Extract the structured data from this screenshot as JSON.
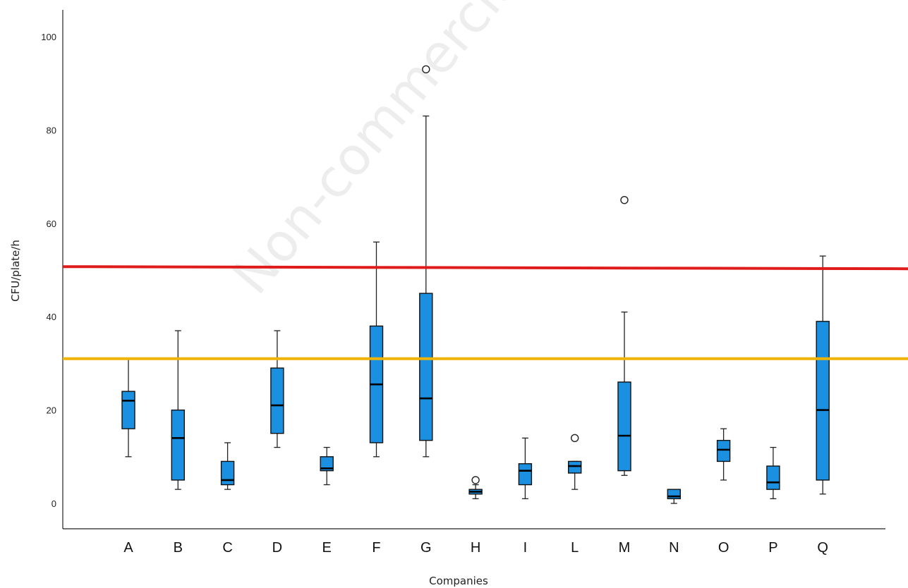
{
  "chart_data": {
    "type": "boxplot",
    "xlabel": "Companies",
    "ylabel": "CFU/plate/h",
    "ylim": [
      -5,
      105
    ],
    "yticks": [
      0,
      20,
      40,
      60,
      80,
      100
    ],
    "watermark": "Non-commercial",
    "categories": [
      "A",
      "B",
      "C",
      "D",
      "E",
      "F",
      "G",
      "H",
      "I",
      "L",
      "M",
      "N",
      "O",
      "P",
      "Q"
    ],
    "boxes": [
      {
        "category": "A",
        "whisker_low": 10,
        "q1": 16,
        "median": 22,
        "q3": 24,
        "whisker_high": 31,
        "outliers": []
      },
      {
        "category": "B",
        "whisker_low": 3,
        "q1": 5,
        "median": 14,
        "q3": 20,
        "whisker_high": 37,
        "outliers": []
      },
      {
        "category": "C",
        "whisker_low": 3,
        "q1": 4,
        "median": 5,
        "q3": 9,
        "whisker_high": 13,
        "outliers": []
      },
      {
        "category": "D",
        "whisker_low": 12,
        "q1": 15,
        "median": 21,
        "q3": 29,
        "whisker_high": 37,
        "outliers": []
      },
      {
        "category": "E",
        "whisker_low": 4,
        "q1": 7,
        "median": 7.5,
        "q3": 10,
        "whisker_high": 12,
        "outliers": []
      },
      {
        "category": "F",
        "whisker_low": 10,
        "q1": 13,
        "median": 25.5,
        "q3": 38,
        "whisker_high": 56,
        "outliers": []
      },
      {
        "category": "G",
        "whisker_low": 10,
        "q1": 13.5,
        "median": 22.5,
        "q3": 45,
        "whisker_high": 83,
        "outliers": [
          93
        ]
      },
      {
        "category": "H",
        "whisker_low": 1,
        "q1": 2,
        "median": 2.5,
        "q3": 3,
        "whisker_high": 4,
        "outliers": [
          5
        ]
      },
      {
        "category": "I",
        "whisker_low": 1,
        "q1": 4,
        "median": 7,
        "q3": 8.5,
        "whisker_high": 14,
        "outliers": []
      },
      {
        "category": "L",
        "whisker_low": 3,
        "q1": 6.5,
        "median": 8,
        "q3": 9,
        "whisker_high": 9,
        "outliers": [
          14
        ]
      },
      {
        "category": "M",
        "whisker_low": 6,
        "q1": 7,
        "median": 14.5,
        "q3": 26,
        "whisker_high": 41,
        "outliers": [
          65
        ]
      },
      {
        "category": "N",
        "whisker_low": 0,
        "q1": 1,
        "median": 1.5,
        "q3": 3,
        "whisker_high": 3,
        "outliers": []
      },
      {
        "category": "O",
        "whisker_low": 5,
        "q1": 9,
        "median": 11.5,
        "q3": 13.5,
        "whisker_high": 16,
        "outliers": []
      },
      {
        "category": "P",
        "whisker_low": 1,
        "q1": 3,
        "median": 4.5,
        "q3": 8,
        "whisker_high": 12,
        "outliers": []
      },
      {
        "category": "Q",
        "whisker_low": 2,
        "q1": 5,
        "median": 20,
        "q3": 39,
        "whisker_high": 53,
        "outliers": []
      }
    ],
    "reference_lines": [
      {
        "value": 50.5,
        "color": "#e01b1b"
      },
      {
        "value": 31,
        "color": "#f0b400"
      }
    ],
    "box_color": "#1b8fe0",
    "grid": false,
    "legend": "none"
  }
}
